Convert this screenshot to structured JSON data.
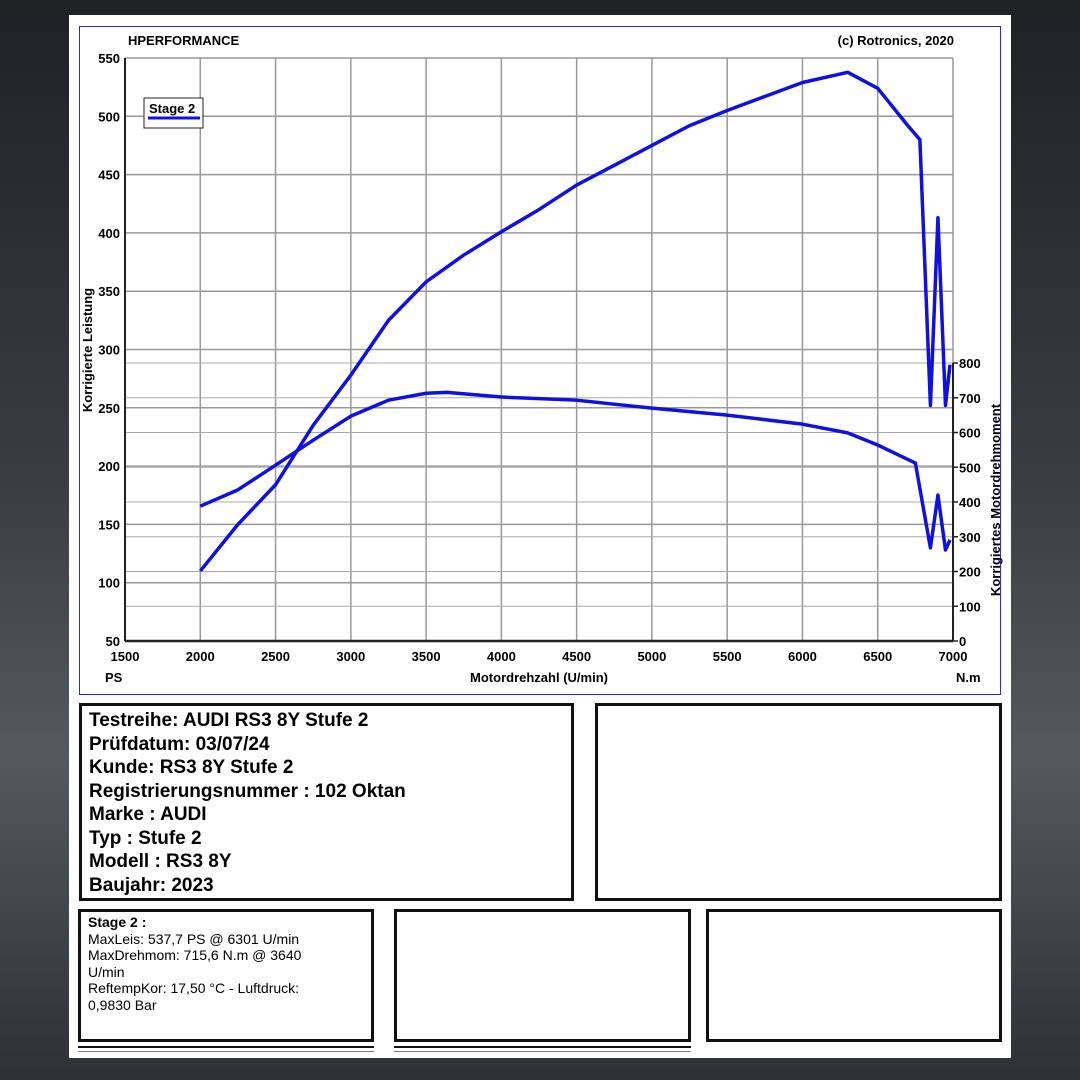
{
  "header": {
    "left": "HPERFORMANCE",
    "right": "(c) Rotronics, 2020"
  },
  "chart_data": {
    "type": "line",
    "xlabel": "Motordrehzahl (U/min)",
    "ylabel": "Korrigierte Leistung",
    "y2label": "Korrigiertes Motordrehmoment",
    "x_unit": "PS",
    "y2_unit": "N.m",
    "xlim": [
      1500,
      7000
    ],
    "ylim": [
      50,
      550
    ],
    "y2lim": [
      0,
      800
    ],
    "x_ticks": [
      1500,
      2000,
      2500,
      3000,
      3500,
      4000,
      4500,
      5000,
      5500,
      6000,
      6500,
      7000
    ],
    "y_ticks": [
      50,
      100,
      150,
      200,
      250,
      300,
      350,
      400,
      450,
      500,
      550
    ],
    "y2_ticks": [
      0,
      100,
      200,
      300,
      400,
      500,
      600,
      700,
      800
    ],
    "grid": true,
    "legend": {
      "position": "top-left",
      "entries": [
        "Stage 2"
      ]
    },
    "series": [
      {
        "name": "Stage 2",
        "axis": "left",
        "color": "#1010e0",
        "x": [
          2000,
          2250,
          2500,
          2750,
          3000,
          3250,
          3500,
          3750,
          4000,
          4250,
          4500,
          4750,
          5000,
          5250,
          5500,
          5750,
          6000,
          6301,
          6500,
          6700,
          6780,
          6850,
          6900,
          6950,
          6980
        ],
        "y": [
          110,
          150,
          184,
          235,
          278,
          325,
          358,
          381,
          401,
          420,
          441,
          458,
          475,
          492,
          505,
          517,
          529,
          537.7,
          524,
          492,
          480,
          252,
          413,
          252,
          287
        ]
      },
      {
        "name": "Stage 2",
        "axis": "right",
        "color": "#1010e0",
        "x": [
          2000,
          2250,
          2500,
          2750,
          3000,
          3250,
          3500,
          3640,
          4000,
          4500,
          5000,
          5500,
          6000,
          6300,
          6500,
          6750,
          6850,
          6900,
          6950,
          6980
        ],
        "y": [
          388,
          435,
          506,
          578,
          647,
          693,
          713,
          715.6,
          702,
          693,
          670,
          650,
          624,
          599,
          564,
          512,
          268,
          420,
          262,
          291
        ]
      }
    ]
  },
  "info": {
    "lines": [
      "Testreihe: AUDI RS3 8Y Stufe 2",
      "Prüfdatum: 03/07/24",
      "Kunde: RS3 8Y Stufe 2",
      "Registrierungsnummer  : 102 Oktan",
      "Marke  : AUDI",
      "Typ  : Stufe 2",
      "Modell  : RS3 8Y",
      "Baujahr: 2023"
    ]
  },
  "summary": {
    "title": "Stage 2 :",
    "lines": [
      "MaxLeis: 537,7 PS @ 6301 U/min",
      "MaxDrehmom: 715,6 N.m @ 3640",
      "U/min",
      "ReftempKor: 17,50 °C - Luftdruck:",
      "0,9830 Bar"
    ]
  }
}
